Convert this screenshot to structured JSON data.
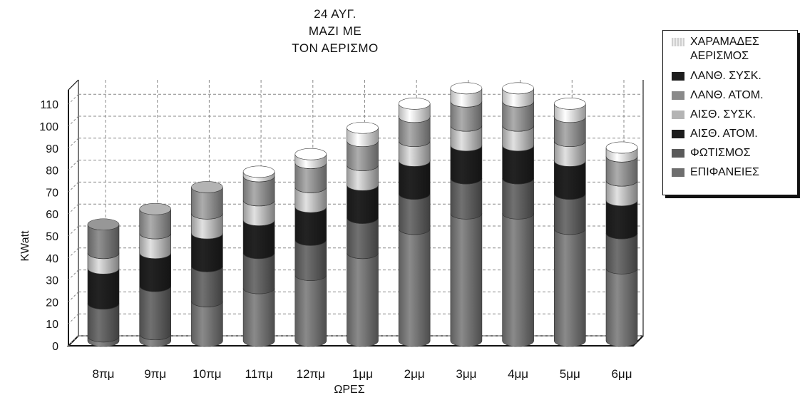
{
  "chart_data": {
    "type": "bar",
    "stacked": true,
    "title_lines": [
      "24 ΑΥΓ.",
      "ΜΑΖΙ ΜΕ",
      "ΤΟΝ ΑΕΡΙΣΜΟ"
    ],
    "xlabel": "ΩΡΕΣ",
    "ylabel": "KWatt",
    "ylim": [
      0,
      110
    ],
    "yticks": [
      0,
      10,
      20,
      30,
      40,
      50,
      60,
      70,
      80,
      90,
      100,
      110
    ],
    "grid": true,
    "legend_position": "right",
    "categories": [
      "8πμ",
      "9πμ",
      "10πμ",
      "11πμ",
      "12πμ",
      "1μμ",
      "2μμ",
      "3μμ",
      "4μμ",
      "5μμ",
      "6μμ"
    ],
    "series": [
      {
        "name": "ΕΠΙΦΑΝΕΙΕΣ",
        "color": "#6e6e6e",
        "values": [
          2,
          3,
          18,
          24,
          30,
          40,
          51,
          58,
          58,
          51,
          33
        ]
      },
      {
        "name": "ΦΩΤΙΣΜΟΣ",
        "color": "#5a5a5a",
        "values": [
          15,
          22,
          16,
          16,
          16,
          16,
          16,
          16,
          16,
          16,
          16
        ]
      },
      {
        "name": "ΑΙΣΘ. ΑΤΟΜ.",
        "color": "#1c1c1c",
        "values": [
          16,
          15,
          15,
          15,
          15,
          15,
          15,
          15,
          15,
          15,
          15
        ]
      },
      {
        "name": "ΑΙΣΘ. ΣΥΣΚ.",
        "color": "#b4b4b4",
        "values": [
          7,
          9,
          9,
          9,
          9,
          9,
          9,
          9,
          9,
          9,
          9
        ]
      },
      {
        "name": "ΛΑΝΘ. ΑΤΟΜ.",
        "color": "#8a8a8a",
        "values": [
          0,
          11,
          12,
          11,
          11,
          11,
          11,
          11,
          11,
          11,
          11
        ]
      },
      {
        "name": "ΛΑΝΘ. ΣΥΣΚ.",
        "color": "#2a2a2a",
        "values": [
          0,
          0,
          0,
          0,
          0,
          0,
          0,
          0,
          0,
          0,
          0
        ]
      },
      {
        "name": "ΧΑΡΑΜΑΔΕΣ ΑΕΡΙΣΜΟΣ",
        "color": "#d6d6d6",
        "values": [
          0,
          0,
          0,
          2,
          4,
          6,
          6,
          6,
          6,
          6,
          4
        ]
      },
      {
        "name": "",
        "color": "#747474",
        "values": [
          13,
          0,
          0,
          0,
          0,
          0,
          0,
          0,
          0,
          0,
          0
        ]
      }
    ]
  },
  "legend": {
    "items": [
      {
        "label": "ΧΑΡΑΜΑΔΕΣ",
        "label2": "ΑΕΡΙΣΜΟΣ",
        "color": "#d6d6d6",
        "pattern": true
      },
      {
        "label": "ΛΑΝΘ. ΣΥΣΚ.",
        "color": "#1e1e1e"
      },
      {
        "label": "ΛΑΝΘ. ΑΤΟΜ.",
        "color": "#8a8a8a"
      },
      {
        "label": "ΑΙΣΘ. ΣΥΣΚ.",
        "color": "#b4b4b4"
      },
      {
        "label": "ΑΙΣΘ. ΑΤΟΜ.",
        "color": "#1c1c1c"
      },
      {
        "label": "ΦΩΤΙΣΜΟΣ",
        "color": "#5a5a5a"
      },
      {
        "label": "ΕΠΙΦΑΝΕΙΕΣ",
        "color": "#6e6e6e"
      }
    ]
  }
}
